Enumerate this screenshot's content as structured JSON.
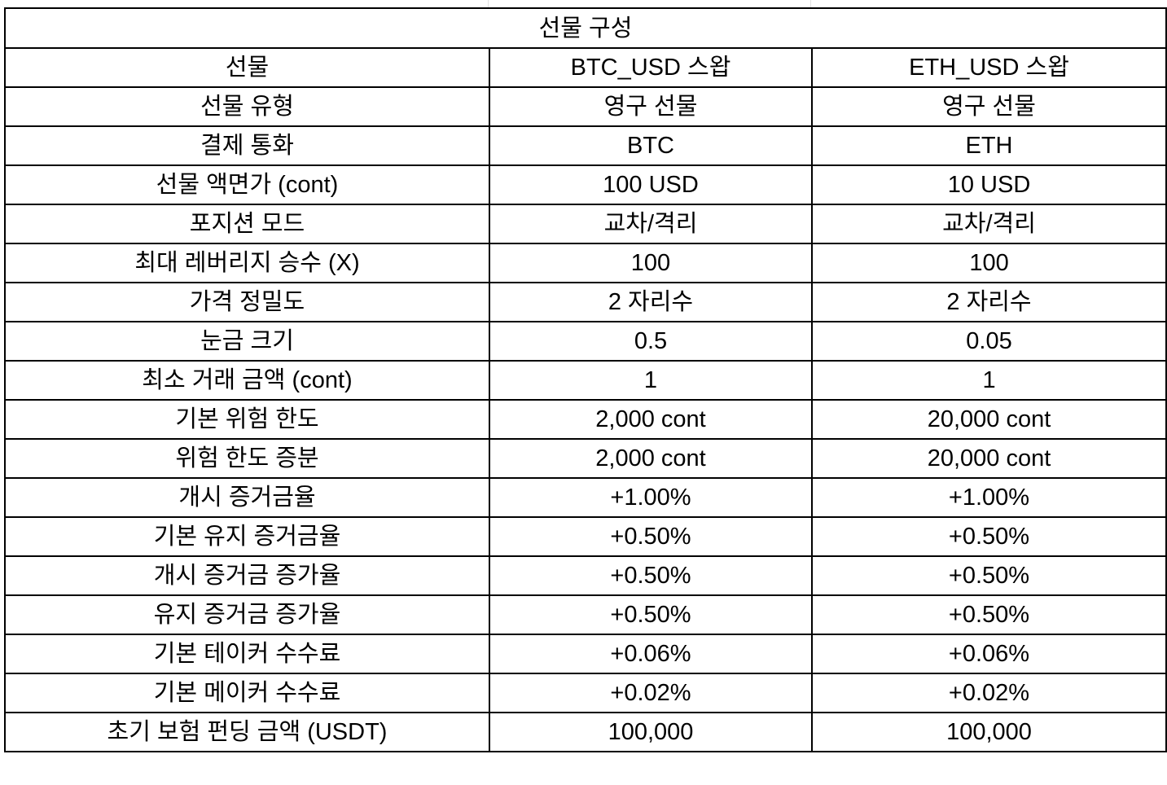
{
  "table": {
    "title": "선물 구성",
    "header": {
      "label": "선물",
      "col1": "BTC_USD 스왑",
      "col2": "ETH_USD 스왑"
    },
    "rows": [
      {
        "label": "선물 유형",
        "btc": "영구 선물",
        "eth": "영구 선물"
      },
      {
        "label": "결제 통화",
        "btc": "BTC",
        "eth": "ETH"
      },
      {
        "label": "선물 액면가 (cont)",
        "btc": "100 USD",
        "eth": "10 USD"
      },
      {
        "label": "포지션 모드",
        "btc": "교차/격리",
        "eth": "교차/격리"
      },
      {
        "label": "최대 레버리지 승수 (X)",
        "btc": "100",
        "eth": "100"
      },
      {
        "label": "가격 정밀도",
        "btc": "2 자리수",
        "eth": "2 자리수"
      },
      {
        "label": "눈금 크기",
        "btc": "0.5",
        "eth": "0.05"
      },
      {
        "label": "최소 거래 금액 (cont)",
        "btc": "1",
        "eth": "1"
      },
      {
        "label": "기본 위험 한도",
        "btc": "2,000 cont",
        "eth": "20,000 cont"
      },
      {
        "label": "위험 한도 증분",
        "btc": "2,000 cont",
        "eth": "20,000 cont"
      },
      {
        "label": "개시 증거금율",
        "btc": "+1.00%",
        "eth": "+1.00%"
      },
      {
        "label": "기본 유지 증거금율",
        "btc": "+0.50%",
        "eth": "+0.50%"
      },
      {
        "label": "개시 증거금 증가율",
        "btc": "+0.50%",
        "eth": "+0.50%"
      },
      {
        "label": "유지 증거금 증가율",
        "btc": "+0.50%",
        "eth": "+0.50%"
      },
      {
        "label": "기본 테이커 수수료",
        "btc": "+0.06%",
        "eth": "+0.06%"
      },
      {
        "label": "기본 메이커 수수료",
        "btc": "+0.02%",
        "eth": "+0.02%"
      },
      {
        "label": "초기 보험 펀딩 금액 (USDT)",
        "btc": "100,000",
        "eth": "100,000"
      }
    ]
  }
}
